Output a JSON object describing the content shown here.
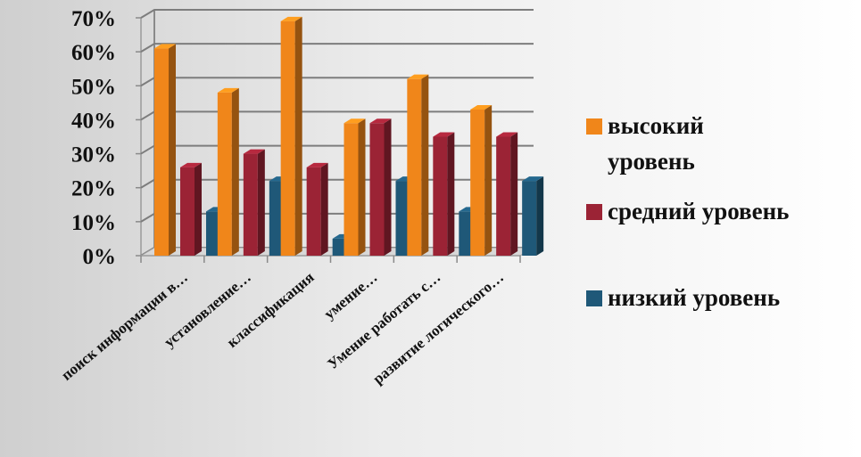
{
  "chart_data": {
    "type": "bar",
    "categories": [
      "поиск информации в…",
      "установление…",
      "классификация",
      "умение…",
      "Умение работать с…",
      "развитие логического…"
    ],
    "series": [
      {
        "name": "высокий уровень",
        "color": "#f0861a",
        "values": [
          61,
          48,
          69,
          39,
          52,
          43
        ]
      },
      {
        "name": "средний уровень",
        "color": "#9b2335",
        "values": [
          26,
          30,
          26,
          39,
          35,
          35
        ]
      },
      {
        "name": "низкий уровень",
        "color": "#1f5878",
        "values": [
          13,
          22,
          5,
          22,
          13,
          22
        ]
      }
    ],
    "yticks": [
      "0%",
      "10%",
      "20%",
      "30%",
      "40%",
      "50%",
      "60%",
      "70%"
    ],
    "ylim": [
      0,
      70
    ],
    "legend_position": "right",
    "legend_lines": [
      [
        "высокий",
        "уровень"
      ],
      [
        "средний уровень"
      ],
      [
        "низкий уровень"
      ]
    ],
    "grid": true
  }
}
